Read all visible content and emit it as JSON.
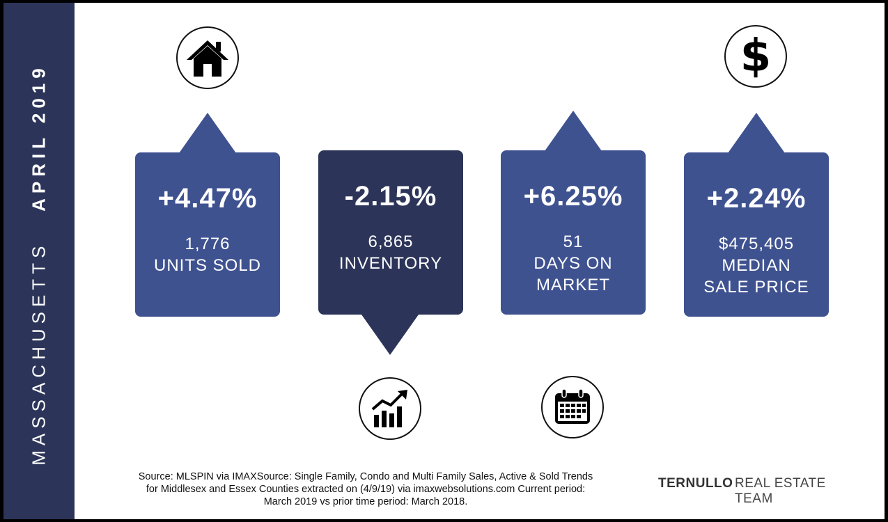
{
  "sidebar": {
    "state": "MASSACHUSETTS",
    "period": "APRIL 2019"
  },
  "cards": [
    {
      "percent": "+4.47%",
      "lines": [
        "1,776",
        "UNITS SOLD"
      ]
    },
    {
      "percent": "-2.15%",
      "lines": [
        "6,865",
        "INVENTORY"
      ]
    },
    {
      "percent": "+6.25%",
      "lines": [
        "51",
        "DAYS ON",
        "MARKET"
      ]
    },
    {
      "percent": "+2.24%",
      "lines": [
        "$475,405",
        "MEDIAN",
        "SALE PRICE"
      ]
    }
  ],
  "icons": [
    "house-icon",
    "trend-chart-icon",
    "calendar-icon",
    "dollar-icon"
  ],
  "source": {
    "line1": "Source: MLSPIN via IMAXSource: Single Family, Condo and Multi Family Sales, Active & Sold Trends",
    "line2": "for Middlesex and Essex Counties extracted on (4/9/19) via imaxwebsolutions.com Current period:",
    "line3": "March 2019 vs prior time period: March 2018."
  },
  "logo": {
    "brand": "TERNULLO",
    "team": "REAL ESTATE TEAM"
  },
  "colors": {
    "sidebar": "#2c3559",
    "card": "#3f5290",
    "card_dark": "#2c3559",
    "background": "#ffffff"
  }
}
